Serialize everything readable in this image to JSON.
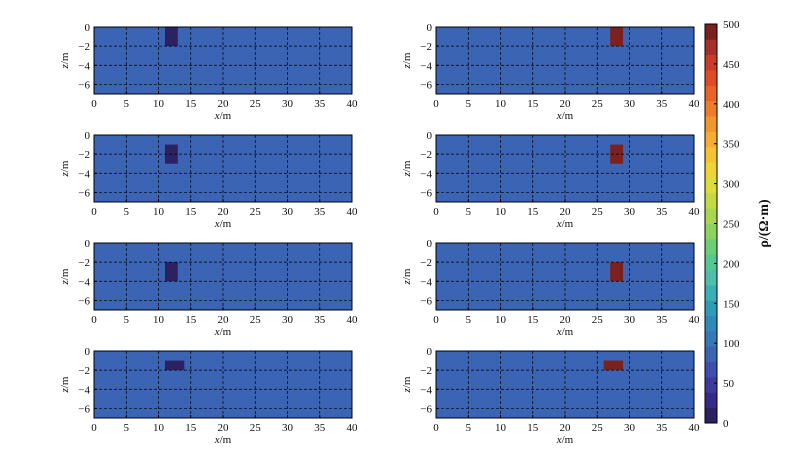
{
  "chart_data": {
    "type": "heatmap",
    "panel_layout": "4 rows x 2 columns",
    "xlabel": "x/m",
    "ylabel": "z/m",
    "xlim": [
      0,
      40
    ],
    "ylim": [
      -7,
      0
    ],
    "x_ticks": [
      "0",
      "5",
      "10",
      "15",
      "20",
      "25",
      "30",
      "35",
      "40"
    ],
    "y_ticks": [
      "0",
      "−2",
      "−4",
      "−6"
    ],
    "grid": "dashed",
    "background_value": 90,
    "colorbar": {
      "title": "ρ/(Ω·m)",
      "range": [
        0,
        500
      ],
      "ticks": [
        "0",
        "50",
        "100",
        "150",
        "200",
        "250",
        "300",
        "350",
        "400",
        "450",
        "500"
      ],
      "colors": [
        "#2c2161",
        "#352a87",
        "#3d3a9e",
        "#3f4fb0",
        "#3c64b4",
        "#3778b7",
        "#2f8ab9",
        "#2c9cba",
        "#3bafb6",
        "#4fbfaa",
        "#55c88f",
        "#6ccf75",
        "#8bd35e",
        "#a8d650",
        "#c4da44",
        "#dddc3a",
        "#eed436",
        "#f5c233",
        "#f6ad31",
        "#f2962e",
        "#ed7d2b",
        "#e76328",
        "#e04a26",
        "#c93b2a",
        "#a72f2c",
        "#7b2220"
      ]
    },
    "panels": [
      {
        "row": 1,
        "col": 1,
        "anomaly": {
          "x": [
            11,
            13
          ],
          "z": [
            -2,
            0
          ],
          "value": 10
        }
      },
      {
        "row": 1,
        "col": 2,
        "anomaly": {
          "x": [
            27,
            29
          ],
          "z": [
            -2,
            0
          ],
          "value": 500
        }
      },
      {
        "row": 2,
        "col": 1,
        "anomaly": {
          "x": [
            11,
            13
          ],
          "z": [
            -3,
            -1
          ],
          "value": 10
        }
      },
      {
        "row": 2,
        "col": 2,
        "anomaly": {
          "x": [
            27,
            29
          ],
          "z": [
            -3,
            -1
          ],
          "value": 500
        }
      },
      {
        "row": 3,
        "col": 1,
        "anomaly": {
          "x": [
            11,
            13
          ],
          "z": [
            -4,
            -2
          ],
          "value": 10
        }
      },
      {
        "row": 3,
        "col": 2,
        "anomaly": {
          "x": [
            27,
            29
          ],
          "z": [
            -4,
            -2
          ],
          "value": 500
        }
      },
      {
        "row": 4,
        "col": 1,
        "anomaly": {
          "x": [
            11,
            14
          ],
          "z": [
            -2,
            -1
          ],
          "value": 10
        }
      },
      {
        "row": 4,
        "col": 2,
        "anomaly": {
          "x": [
            26,
            29
          ],
          "z": [
            -2,
            -1
          ],
          "value": 500
        }
      }
    ]
  }
}
